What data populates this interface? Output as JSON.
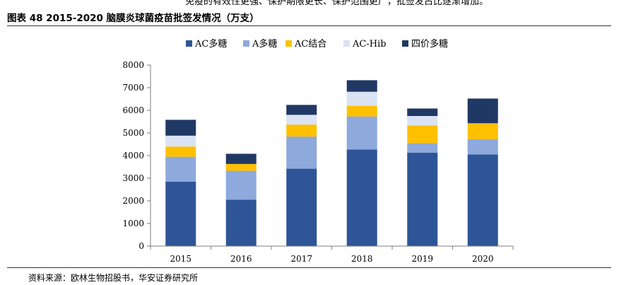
{
  "header": {
    "fragment": "免疫的有效性更强、保护期限更长、保护范围更广，批签发占比逐渐增加。",
    "title": "图表 48 2015-2020 脑膜炎球菌疫苗批签发情况（万支）"
  },
  "footer": {
    "source": "资料来源：欧林生物招股书，华安证券研究所"
  },
  "colors": {
    "ac_polysaccharide": "#2E5597",
    "a_polysaccharide": "#8EA9DB",
    "ac_conjugate": "#FFC000",
    "ac_hib": "#DAE3F3",
    "quadrivalent": "#203864"
  },
  "chart_data": {
    "type": "bar",
    "stacked": true,
    "title": "",
    "xlabel": "",
    "ylabel": "",
    "categories": [
      "2015",
      "2016",
      "2017",
      "2018",
      "2019",
      "2020"
    ],
    "ylim": [
      0,
      8000
    ],
    "yticks": [
      0,
      1000,
      2000,
      3000,
      4000,
      5000,
      6000,
      7000,
      8000
    ],
    "grid": false,
    "legend_position": "top",
    "series": [
      {
        "name": "AC多糖",
        "color": "#2E5597",
        "values": [
          2850,
          2050,
          3420,
          4270,
          4130,
          4050
        ]
      },
      {
        "name": "A多糖",
        "color": "#8EA9DB",
        "values": [
          1100,
          1280,
          1420,
          1460,
          420,
          680
        ]
      },
      {
        "name": "AC结合",
        "color": "#FFC000",
        "values": [
          450,
          300,
          530,
          470,
          780,
          700
        ]
      },
      {
        "name": "AC-Hib",
        "color": "#DAE3F3",
        "values": [
          480,
          0,
          430,
          620,
          420,
          0
        ]
      },
      {
        "name": "四价多糖",
        "color": "#203864",
        "values": [
          700,
          450,
          440,
          510,
          330,
          1090
        ]
      }
    ]
  }
}
